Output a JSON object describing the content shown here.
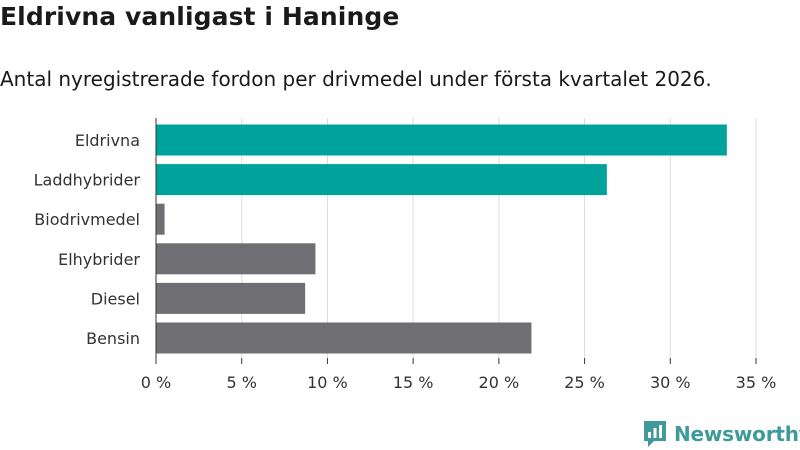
{
  "header": {
    "title": "Eldrivna vanligast i Haninge",
    "subtitle": "Antal nyregistrerade fordon per drivmedel under första kvartalet 2026."
  },
  "chart_data": {
    "type": "bar",
    "orientation": "horizontal",
    "categories": [
      "Eldrivna",
      "Laddhybrider",
      "Biodrivmedel",
      "Elhybrider",
      "Diesel",
      "Bensin"
    ],
    "values": [
      33.3,
      26.3,
      0.5,
      9.3,
      8.7,
      21.9
    ],
    "colors": [
      "#00a39b",
      "#00a39b",
      "#6e6e73",
      "#6e6e73",
      "#6e6e73",
      "#6e6e73"
    ],
    "xlim": [
      0,
      35
    ],
    "xticks": [
      0,
      5,
      10,
      15,
      20,
      25,
      30,
      35
    ],
    "tick_labels": [
      "0 %",
      "5 %",
      "10 %",
      "15 %",
      "20 %",
      "25 %",
      "30 %",
      "35 %"
    ],
    "grid": true
  },
  "footer": {
    "brand": "Newsworthy",
    "brand_color": "#3f9a9a",
    "logo_icon": "newsworthy-logo-icon"
  }
}
